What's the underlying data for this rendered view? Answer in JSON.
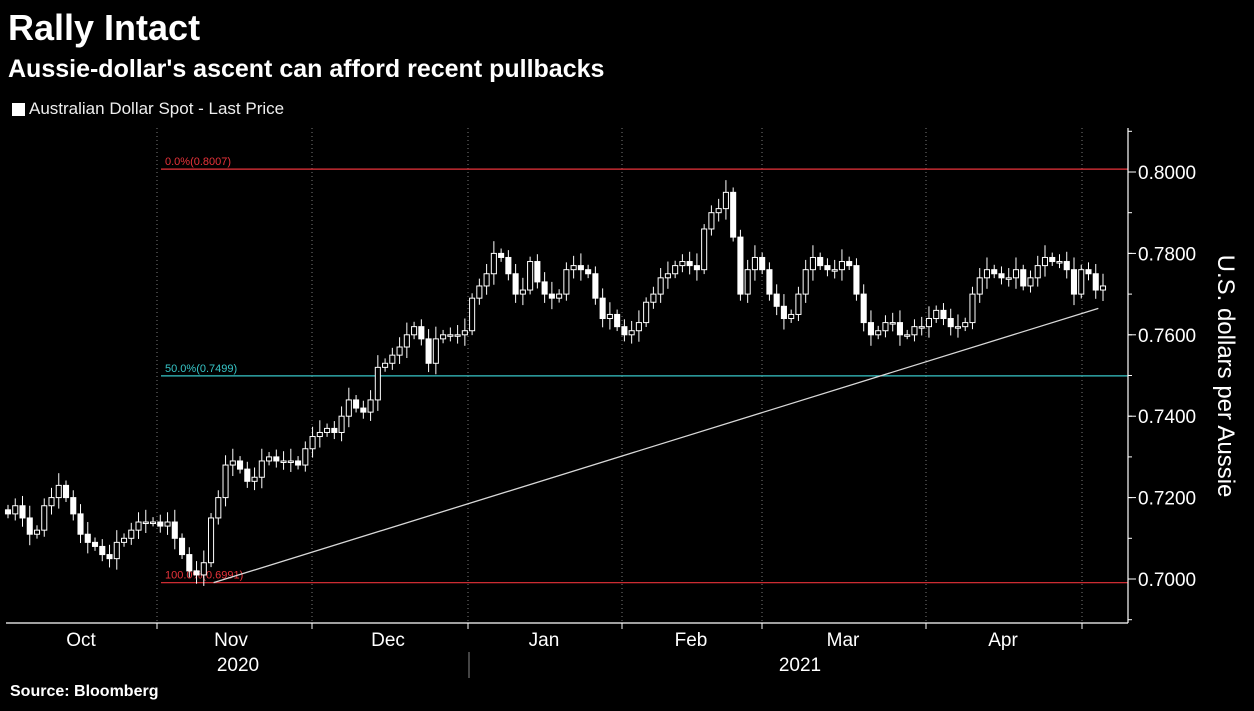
{
  "header": {
    "title": "Rally Intact",
    "subtitle": "Aussie-dollar's ascent can afford recent pullbacks"
  },
  "legend": {
    "label": "Australian Dollar Spot - Last Price"
  },
  "footer": {
    "source": "Source: Bloomberg"
  },
  "colors": {
    "background": "#000000",
    "candle": "#ffffff",
    "fib_extreme": "#e8333a",
    "fib_mid": "#37c6c8",
    "trendline": "#d8d8d8",
    "grid": "#7a7a7a"
  },
  "chart_data": {
    "type": "candlestick",
    "title": "Rally Intact",
    "subtitle": "Aussie-dollar's ascent can afford recent pullbacks",
    "ylabel": "U.S. dollars per Aussie",
    "ylim": [
      0.6895,
      0.8105
    ],
    "y_ticks": [
      "0.7000",
      "0.7200",
      "0.7400",
      "0.7600",
      "0.7800",
      "0.8000"
    ],
    "x_ticks": [
      "Oct",
      "Nov",
      "Dec",
      "Jan",
      "Feb",
      "Mar",
      "Apr"
    ],
    "x_years": [
      "2020",
      "2021"
    ],
    "legend": "top-left",
    "grid": "vertical dotted at month boundaries",
    "fibonacci": [
      {
        "label": "0.0%(0.8007)",
        "value": 0.8007,
        "color": "#e8333a"
      },
      {
        "label": "50.0%(0.7499)",
        "value": 0.7499,
        "color": "#37c6c8"
      },
      {
        "label": "100.0%(0.6991)",
        "value": 0.6991,
        "color": "#e8333a"
      }
    ],
    "trendline": {
      "from": {
        "date": "2020-11-02",
        "value": 0.6991
      },
      "to": {
        "date": "2021-04-30",
        "value": 0.7665
      }
    },
    "closes": [
      0.716,
      0.718,
      0.715,
      0.711,
      0.712,
      0.718,
      0.72,
      0.723,
      0.72,
      0.716,
      0.711,
      0.709,
      0.708,
      0.706,
      0.705,
      0.709,
      0.71,
      0.712,
      0.714,
      0.714,
      0.714,
      0.713,
      0.714,
      0.71,
      0.706,
      0.702,
      0.701,
      0.704,
      0.715,
      0.72,
      0.728,
      0.729,
      0.727,
      0.724,
      0.725,
      0.729,
      0.73,
      0.729,
      0.729,
      0.729,
      0.728,
      0.732,
      0.735,
      0.736,
      0.737,
      0.736,
      0.74,
      0.744,
      0.742,
      0.741,
      0.744,
      0.752,
      0.753,
      0.755,
      0.757,
      0.76,
      0.762,
      0.759,
      0.753,
      0.759,
      0.76,
      0.76,
      0.76,
      0.761,
      0.769,
      0.772,
      0.775,
      0.78,
      0.779,
      0.775,
      0.77,
      0.771,
      0.778,
      0.773,
      0.77,
      0.769,
      0.77,
      0.776,
      0.777,
      0.776,
      0.775,
      0.769,
      0.764,
      0.765,
      0.762,
      0.76,
      0.761,
      0.763,
      0.768,
      0.77,
      0.774,
      0.775,
      0.777,
      0.778,
      0.777,
      0.776,
      0.786,
      0.79,
      0.791,
      0.795,
      0.784,
      0.77,
      0.776,
      0.779,
      0.776,
      0.77,
      0.767,
      0.764,
      0.765,
      0.77,
      0.776,
      0.779,
      0.777,
      0.776,
      0.776,
      0.778,
      0.777,
      0.77,
      0.763,
      0.76,
      0.761,
      0.763,
      0.763,
      0.76,
      0.76,
      0.762,
      0.762,
      0.764,
      0.766,
      0.764,
      0.762,
      0.762,
      0.763,
      0.77,
      0.774,
      0.776,
      0.775,
      0.774,
      0.774,
      0.776,
      0.772,
      0.774,
      0.777,
      0.779,
      0.778,
      0.778,
      0.776,
      0.77,
      0.776,
      0.775,
      0.771,
      0.772
    ]
  }
}
